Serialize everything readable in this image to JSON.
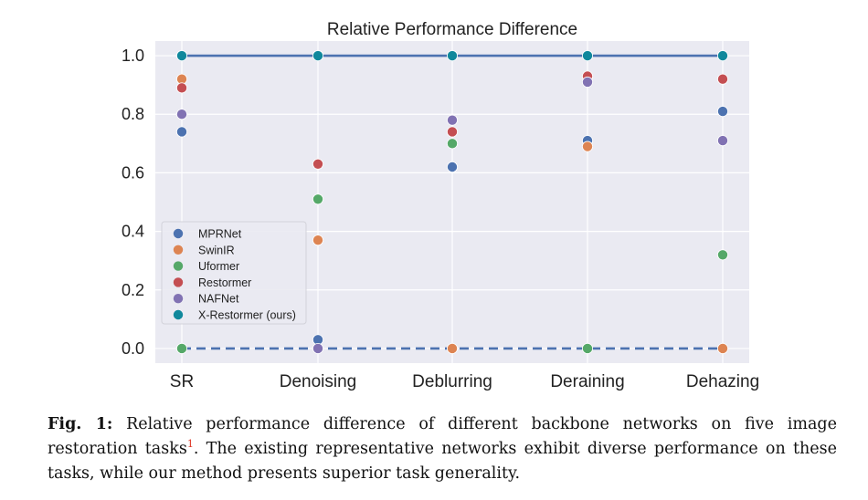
{
  "chart_data": {
    "type": "scatter",
    "title": "Relative Performance Difference",
    "categories": [
      "SR",
      "Denoising",
      "Deblurring",
      "Deraining",
      "Dehazing"
    ],
    "ylim": [
      -0.05,
      1.05
    ],
    "yticks": [
      0.0,
      0.2,
      0.4,
      0.6,
      0.8,
      1.0
    ],
    "ytick_labels": [
      "0.0",
      "0.2",
      "0.4",
      "0.6",
      "0.8",
      "1.0"
    ],
    "grid": true,
    "legend_position": "center-left",
    "series": [
      {
        "name": "MPRNet",
        "color": "#4c72b0",
        "values": [
          0.74,
          0.03,
          0.62,
          0.71,
          0.81
        ]
      },
      {
        "name": "SwinIR",
        "color": "#dd8452",
        "values": [
          0.92,
          0.37,
          0.0,
          0.69,
          0.0
        ]
      },
      {
        "name": "Uformer",
        "color": "#55a868",
        "values": [
          0.0,
          0.51,
          0.7,
          0.0,
          0.32
        ]
      },
      {
        "name": "Restormer",
        "color": "#c44e52",
        "values": [
          0.89,
          0.63,
          0.74,
          0.93,
          0.92
        ]
      },
      {
        "name": "NAFNet",
        "color": "#8172b3",
        "values": [
          0.8,
          0.0,
          0.78,
          0.91,
          0.71
        ]
      },
      {
        "name": "X-Restormer (ours)",
        "color": "#10889c",
        "values": [
          1.0,
          1.0,
          1.0,
          1.0,
          1.0
        ]
      }
    ],
    "reference_lines": [
      {
        "value": 1.0,
        "style": "solid",
        "color": "#4c72b0"
      },
      {
        "value": 0.0,
        "style": "dashed",
        "color": "#4c72b0"
      }
    ],
    "colors": {
      "plot_bg": "#eaeaf2",
      "grid": "#ffffff"
    }
  },
  "caption": {
    "label": "Fig. 1:",
    "text_before": "Relative performance difference of different backbone networks on five image restoration tasks",
    "footnote": "1",
    "text_after": ". The existing representative networks exhibit diverse performance on these tasks, while our method presents superior task generality."
  }
}
